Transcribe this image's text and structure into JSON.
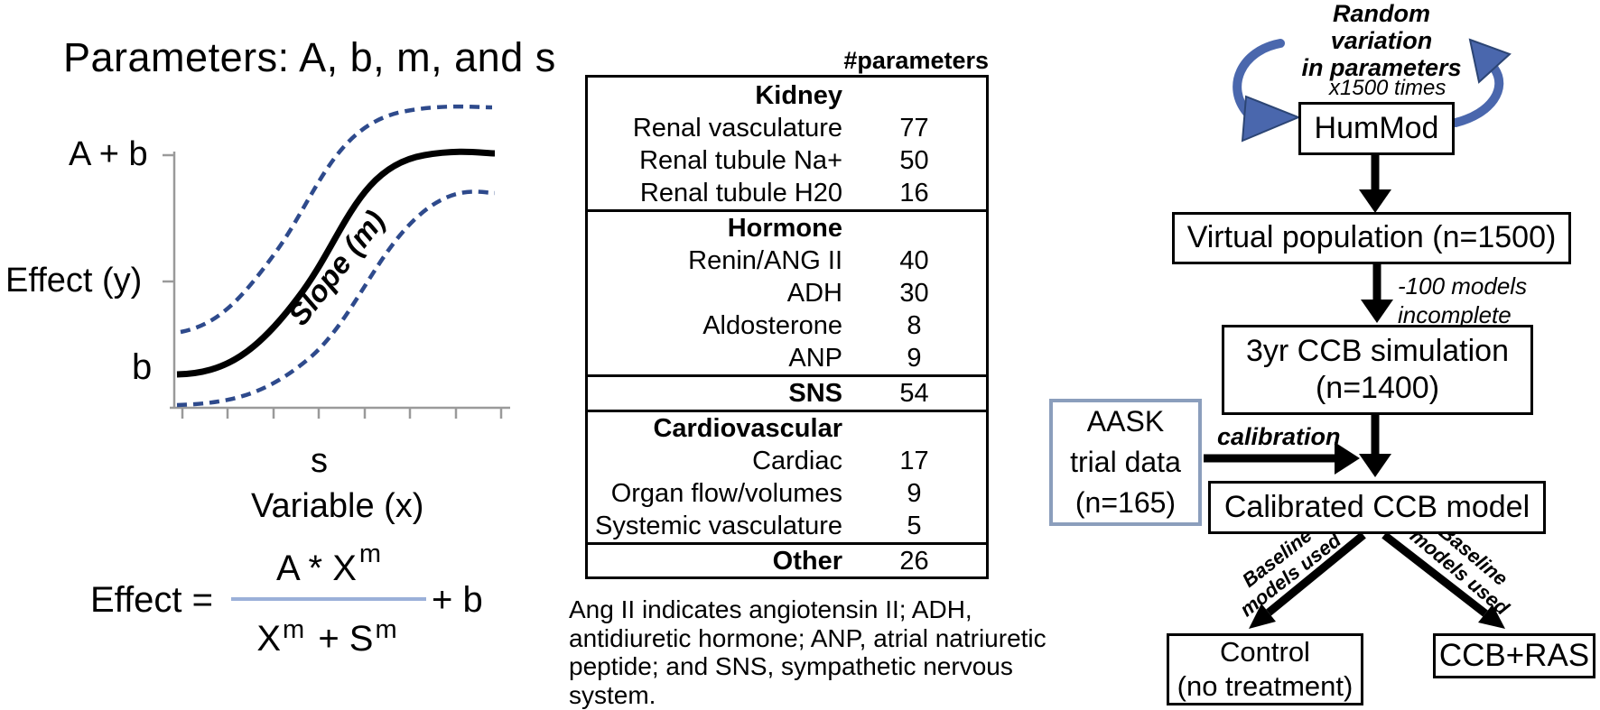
{
  "left_panel": {
    "title": "Parameters: A, b, m, and s",
    "plot": {
      "y_max_label": "A + b",
      "y_axis_title": "Effect (y)",
      "y_min_label": "b",
      "x_tick_label": "s",
      "x_axis_title": "Variable (x)",
      "slope_label": "Slope (m)",
      "curve_color": "#000000",
      "band_color": "#2e4a8c",
      "axis_color": "#9a9a9a"
    },
    "equation": {
      "lhs": "Effect =",
      "numerator": "A * X",
      "numerator_sup": "m",
      "denominator_x": "X",
      "denominator_sup1": "m",
      "denominator_plus": "+",
      "denominator_s": "S",
      "denominator_sup2": "m",
      "suffix": "+ b",
      "fraction_line_color": "#9bb0d9"
    }
  },
  "table_panel": {
    "column_header": "#parameters",
    "rows": [
      {
        "label": "Kidney",
        "value": "",
        "bold": true
      },
      {
        "label": "Renal vasculature",
        "value": "77"
      },
      {
        "label": "Renal tubule Na+",
        "value": "50"
      },
      {
        "label": "Renal tubule H20",
        "value": "16",
        "divider_after": true
      },
      {
        "label": "Hormone",
        "value": "",
        "bold": true
      },
      {
        "label": "Renin/ANG II",
        "value": "40"
      },
      {
        "label": "ADH",
        "value": "30"
      },
      {
        "label": "Aldosterone",
        "value": "8"
      },
      {
        "label": "ANP",
        "value": "9",
        "divider_after": true
      },
      {
        "label": "SNS",
        "value": "54",
        "bold": true,
        "divider_after": true
      },
      {
        "label": "Cardiovascular",
        "value": "",
        "bold": true
      },
      {
        "label": "Cardiac",
        "value": "17"
      },
      {
        "label": "Organ flow/volumes",
        "value": "9"
      },
      {
        "label": "Systemic vasculature",
        "value": "5",
        "divider_after": true
      },
      {
        "label": "Other",
        "value": "26",
        "bold": true
      }
    ],
    "caption": "Ang II indicates angiotensin II; ADH,\nantidiuretic hormone; ANP, atrial natriuretic\npeptide; and SNS, sympathetic nervous\nsystem."
  },
  "flowchart": {
    "loop_label": "Random variation\nin parameters",
    "iterations_label": "x1500 times",
    "hummod": "HumMod",
    "virtual_population": "Virtual population (n=1500)",
    "incomplete_note": "-100 models\nincomplete",
    "ccb_simulation": "3yr CCB simulation\n(n=1400)",
    "aask": "AASK\ntrial data\n(n=165)",
    "calibration_label": "calibration",
    "calibrated_model": "Calibrated CCB model",
    "baseline_left": "Baseline\nmodels used",
    "baseline_right": "Baseline\nmodels used",
    "control": "Control\n(no treatment)",
    "ccb_ras": "CCB+RAS",
    "arrow_color": "#000000",
    "loop_arrow_color": "#4a67ad",
    "loop_arrow_edge": "#2c4574",
    "aask_border_color": "#8b9ebc"
  }
}
